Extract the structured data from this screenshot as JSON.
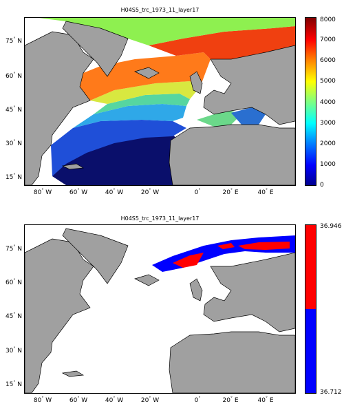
{
  "panels": [
    {
      "title": "H04S5_trc_1973_11_layer17",
      "colorbar": {
        "type": "jet",
        "ticks": [
          "0",
          "1000",
          "2000",
          "3000",
          "4000",
          "5000",
          "6000",
          "7000",
          "8000"
        ],
        "max": 8000
      },
      "lat_labels": [
        "75",
        "60",
        "45",
        "30",
        "15"
      ],
      "lon_labels": [
        "80",
        "60",
        "40",
        "20",
        "0",
        "20",
        "40"
      ],
      "lat_suffix": "N",
      "lon_suffixes": [
        "W",
        "W",
        "W",
        "W",
        "",
        "E",
        "E"
      ]
    },
    {
      "title": "H04S5_trc_1973_11_layer17",
      "colorbar": {
        "type": "binary",
        "top_label": "36.946",
        "bottom_label": "36.712",
        "top_color": "#ff0000",
        "bottom_color": "#0000ff"
      },
      "lat_labels": [
        "75",
        "60",
        "45",
        "30",
        "15"
      ],
      "lon_labels": [
        "80",
        "60",
        "40",
        "20",
        "0",
        "20",
        "40"
      ],
      "lat_suffix": "N",
      "lon_suffixes": [
        "W",
        "W",
        "W",
        "W",
        "",
        "E",
        "E"
      ]
    }
  ],
  "colors": {
    "land": "#a0a0a0",
    "land_edge": "#000000",
    "ocean_blank": "#ffffff"
  }
}
